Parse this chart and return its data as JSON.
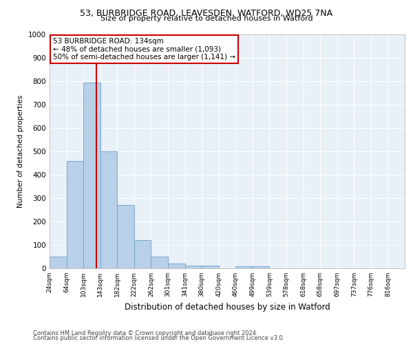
{
  "title1": "53, BURBRIDGE ROAD, LEAVESDEN, WATFORD, WD25 7NA",
  "title2": "Size of property relative to detached houses in Watford",
  "xlabel": "Distribution of detached houses by size in Watford",
  "ylabel": "Number of detached properties",
  "bin_labels": [
    "24sqm",
    "64sqm",
    "103sqm",
    "143sqm",
    "182sqm",
    "222sqm",
    "262sqm",
    "301sqm",
    "341sqm",
    "380sqm",
    "420sqm",
    "460sqm",
    "499sqm",
    "539sqm",
    "578sqm",
    "618sqm",
    "658sqm",
    "697sqm",
    "737sqm",
    "776sqm",
    "816sqm"
  ],
  "bar_values": [
    50,
    460,
    795,
    500,
    270,
    120,
    50,
    22,
    12,
    12,
    0,
    10,
    10,
    0,
    0,
    0,
    0,
    0,
    0,
    0,
    0
  ],
  "bar_color": "#b8d0e8",
  "bar_edge_color": "#6aa0cc",
  "bg_color": "#e8f0f8",
  "grid_color": "#d0dce8",
  "red_line_x": 2.75,
  "red_line_color": "#cc0000",
  "annotation_text": "53 BURBRIDGE ROAD: 134sqm\n← 48% of detached houses are smaller (1,093)\n50% of semi-detached houses are larger (1,141) →",
  "annotation_box_color": "#ffffff",
  "annotation_box_edge": "#cc0000",
  "footer1": "Contains HM Land Registry data © Crown copyright and database right 2024.",
  "footer2": "Contains public sector information licensed under the Open Government Licence v3.0.",
  "ylim": [
    0,
    1000
  ],
  "yticks": [
    0,
    100,
    200,
    300,
    400,
    500,
    600,
    700,
    800,
    900,
    1000
  ],
  "fig_bg": "#ffffff"
}
